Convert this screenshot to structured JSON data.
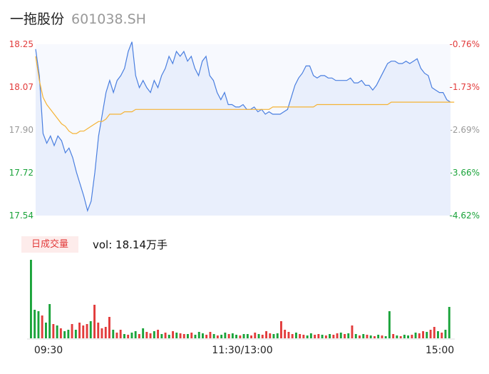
{
  "header": {
    "name": "一拖股份",
    "code": "601038.SH"
  },
  "volume_panel": {
    "badge": "日成交量",
    "label": "vol: 18.14万手"
  },
  "colors": {
    "price_line": "#4a7fe0",
    "avg_line": "#f5b335",
    "up": "#e23b3b",
    "down": "#1aa33a",
    "axis_neutral": "#999999"
  },
  "chart_data": [
    {
      "type": "line",
      "title": "",
      "x_ticks": [
        "09:30",
        "11:30/13:00",
        "15:00"
      ],
      "y_range": [
        17.54,
        18.25
      ],
      "y_ticks_left": [
        "18.25",
        "18.07",
        "17.90",
        "17.72",
        "17.54"
      ],
      "y_ticks_right": [
        "-0.76%",
        "-1.73%",
        "-2.69%",
        "-3.66%",
        "-4.62%"
      ],
      "series": [
        {
          "role": "price",
          "values": [
            18.23,
            18.12,
            17.88,
            17.84,
            17.87,
            17.83,
            17.87,
            17.85,
            17.8,
            17.82,
            17.78,
            17.72,
            17.67,
            17.62,
            17.56,
            17.6,
            17.72,
            17.87,
            17.96,
            18.05,
            18.1,
            18.05,
            18.1,
            18.12,
            18.15,
            18.22,
            18.26,
            18.12,
            18.07,
            18.1,
            18.07,
            18.05,
            18.1,
            18.07,
            18.12,
            18.15,
            18.2,
            18.17,
            18.22,
            18.2,
            18.22,
            18.18,
            18.2,
            18.15,
            18.12,
            18.18,
            18.2,
            18.12,
            18.1,
            18.05,
            18.02,
            18.05,
            18.0,
            18.0,
            17.99,
            17.99,
            18.0,
            17.98,
            17.98,
            17.99,
            17.97,
            17.98,
            17.96,
            17.97,
            17.96,
            17.96,
            17.96,
            17.97,
            17.98,
            18.03,
            18.08,
            18.11,
            18.13,
            18.16,
            18.16,
            18.12,
            18.11,
            18.12,
            18.12,
            18.11,
            18.11,
            18.1,
            18.1,
            18.1,
            18.1,
            18.11,
            18.09,
            18.09,
            18.1,
            18.08,
            18.08,
            18.06,
            18.08,
            18.11,
            18.14,
            18.17,
            18.18,
            18.18,
            18.17,
            18.17,
            18.18,
            18.17,
            18.18,
            18.19,
            18.15,
            18.13,
            18.12,
            18.07,
            18.06,
            18.05,
            18.05,
            18.02,
            18.01
          ],
          "avg": [
            18.2,
            18.1,
            18.03,
            18.0,
            17.98,
            17.96,
            17.94,
            17.92,
            17.91,
            17.89,
            17.88,
            17.88,
            17.89,
            17.89,
            17.9,
            17.91,
            17.92,
            17.93,
            17.93,
            17.94,
            17.96,
            17.96,
            17.96,
            17.96,
            17.97,
            17.97,
            17.97,
            17.98,
            17.98,
            17.98,
            17.98,
            17.98,
            17.98,
            17.98,
            17.98,
            17.98,
            17.98,
            17.98,
            17.98,
            17.98,
            17.98,
            17.98,
            17.98,
            17.98,
            17.98,
            17.98,
            17.98,
            17.98,
            17.98,
            17.98,
            17.98,
            17.98,
            17.98,
            17.98,
            17.98,
            17.98,
            17.98,
            17.98,
            17.98,
            17.98,
            17.98,
            17.98,
            17.98,
            17.98,
            17.99,
            17.99,
            17.99,
            17.99,
            17.99,
            17.99,
            17.99,
            17.99,
            17.99,
            17.99,
            17.99,
            17.99,
            18.0,
            18.0,
            18.0,
            18.0,
            18.0,
            18.0,
            18.0,
            18.0,
            18.0,
            18.0,
            18.0,
            18.0,
            18.0,
            18.0,
            18.0,
            18.0,
            18.0,
            18.0,
            18.0,
            18.0,
            18.01,
            18.01,
            18.01,
            18.01,
            18.01,
            18.01,
            18.01,
            18.01,
            18.01,
            18.01,
            18.01,
            18.01,
            18.01,
            18.01,
            18.01,
            18.01,
            18.01,
            18.01
          ]
        }
      ]
    },
    {
      "type": "bar",
      "title": "",
      "x_ticks": [
        "09:30",
        "11:30/13:00",
        "15:00"
      ],
      "bars": [
        [
          110,
          "d"
        ],
        [
          40,
          "d"
        ],
        [
          38,
          "d"
        ],
        [
          32,
          "r"
        ],
        [
          22,
          "d"
        ],
        [
          48,
          "d"
        ],
        [
          20,
          "r"
        ],
        [
          18,
          "d"
        ],
        [
          14,
          "r"
        ],
        [
          10,
          "d"
        ],
        [
          12,
          "d"
        ],
        [
          20,
          "r"
        ],
        [
          12,
          "d"
        ],
        [
          22,
          "r"
        ],
        [
          18,
          "r"
        ],
        [
          20,
          "r"
        ],
        [
          24,
          "d"
        ],
        [
          47,
          "r"
        ],
        [
          22,
          "r"
        ],
        [
          14,
          "r"
        ],
        [
          16,
          "r"
        ],
        [
          30,
          "r"
        ],
        [
          12,
          "d"
        ],
        [
          8,
          "r"
        ],
        [
          12,
          "r"
        ],
        [
          6,
          "d"
        ],
        [
          5,
          "r"
        ],
        [
          8,
          "d"
        ],
        [
          10,
          "d"
        ],
        [
          6,
          "r"
        ],
        [
          14,
          "d"
        ],
        [
          9,
          "r"
        ],
        [
          7,
          "r"
        ],
        [
          10,
          "d"
        ],
        [
          12,
          "r"
        ],
        [
          6,
          "d"
        ],
        [
          8,
          "r"
        ],
        [
          5,
          "d"
        ],
        [
          10,
          "r"
        ],
        [
          8,
          "d"
        ],
        [
          7,
          "r"
        ],
        [
          6,
          "r"
        ],
        [
          6,
          "d"
        ],
        [
          8,
          "r"
        ],
        [
          5,
          "d"
        ],
        [
          9,
          "d"
        ],
        [
          7,
          "d"
        ],
        [
          5,
          "r"
        ],
        [
          9,
          "r"
        ],
        [
          6,
          "d"
        ],
        [
          4,
          "r"
        ],
        [
          5,
          "d"
        ],
        [
          8,
          "d"
        ],
        [
          6,
          "r"
        ],
        [
          7,
          "d"
        ],
        [
          5,
          "d"
        ],
        [
          4,
          "r"
        ],
        [
          6,
          "d"
        ],
        [
          6,
          "d"
        ],
        [
          4,
          "r"
        ],
        [
          8,
          "r"
        ],
        [
          6,
          "d"
        ],
        [
          5,
          "r"
        ],
        [
          10,
          "r"
        ],
        [
          7,
          "r"
        ],
        [
          6,
          "d"
        ],
        [
          7,
          "d"
        ],
        [
          24,
          "r"
        ],
        [
          12,
          "r"
        ],
        [
          9,
          "r"
        ],
        [
          6,
          "r"
        ],
        [
          8,
          "d"
        ],
        [
          6,
          "r"
        ],
        [
          5,
          "r"
        ],
        [
          4,
          "d"
        ],
        [
          7,
          "d"
        ],
        [
          5,
          "r"
        ],
        [
          6,
          "r"
        ],
        [
          5,
          "d"
        ],
        [
          4,
          "r"
        ],
        [
          6,
          "d"
        ],
        [
          5,
          "r"
        ],
        [
          7,
          "r"
        ],
        [
          8,
          "d"
        ],
        [
          6,
          "r"
        ],
        [
          7,
          "d"
        ],
        [
          18,
          "r"
        ],
        [
          6,
          "d"
        ],
        [
          4,
          "r"
        ],
        [
          6,
          "d"
        ],
        [
          5,
          "r"
        ],
        [
          4,
          "d"
        ],
        [
          3,
          "r"
        ],
        [
          5,
          "d"
        ],
        [
          4,
          "r"
        ],
        [
          3,
          "d"
        ],
        [
          38,
          "d"
        ],
        [
          6,
          "r"
        ],
        [
          4,
          "d"
        ],
        [
          3,
          "r"
        ],
        [
          5,
          "d"
        ],
        [
          4,
          "d"
        ],
        [
          5,
          "r"
        ],
        [
          8,
          "d"
        ],
        [
          7,
          "r"
        ],
        [
          10,
          "r"
        ],
        [
          9,
          "d"
        ],
        [
          12,
          "r"
        ],
        [
          16,
          "r"
        ],
        [
          10,
          "d"
        ],
        [
          8,
          "r"
        ],
        [
          12,
          "d"
        ],
        [
          44,
          "d"
        ]
      ]
    }
  ]
}
